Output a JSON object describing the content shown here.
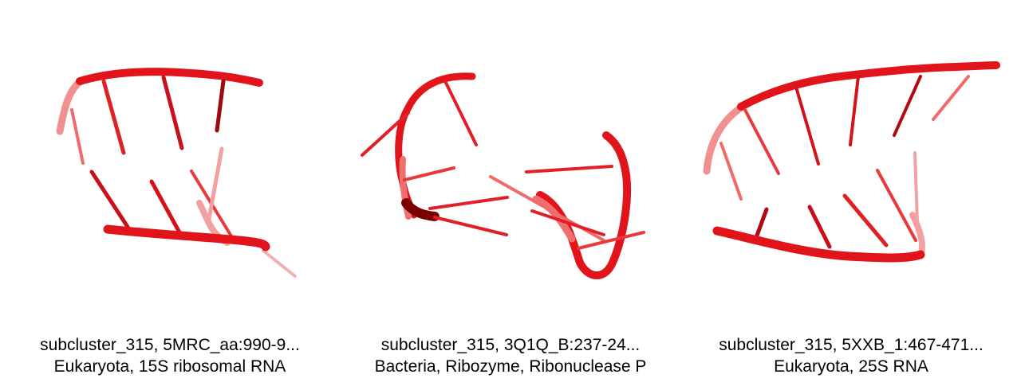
{
  "panels": [
    {
      "caption_line1": "subcluster_315, 5MRC_aa:990-9...",
      "caption_line2": "Eukaryota, 15S ribosomal RNA",
      "image": "RNA-3d-structure-red-cartoon"
    },
    {
      "caption_line1": "subcluster_315, 3Q1Q_B:237-24...",
      "caption_line2": "Bacteria, Ribozyme, Ribonuclease P",
      "image": "RNA-3d-structure-red-cartoon"
    },
    {
      "caption_line1": "subcluster_315, 5XXB_1:467-471...",
      "caption_line2": "Eukaryota, 25S RNA",
      "image": "RNA-3d-structure-red-cartoon"
    }
  ],
  "colors": {
    "backbone": "#e0141a",
    "backbone_dark": "#7a0000",
    "base": "#d41218",
    "base_faded": "#f06a6a"
  }
}
